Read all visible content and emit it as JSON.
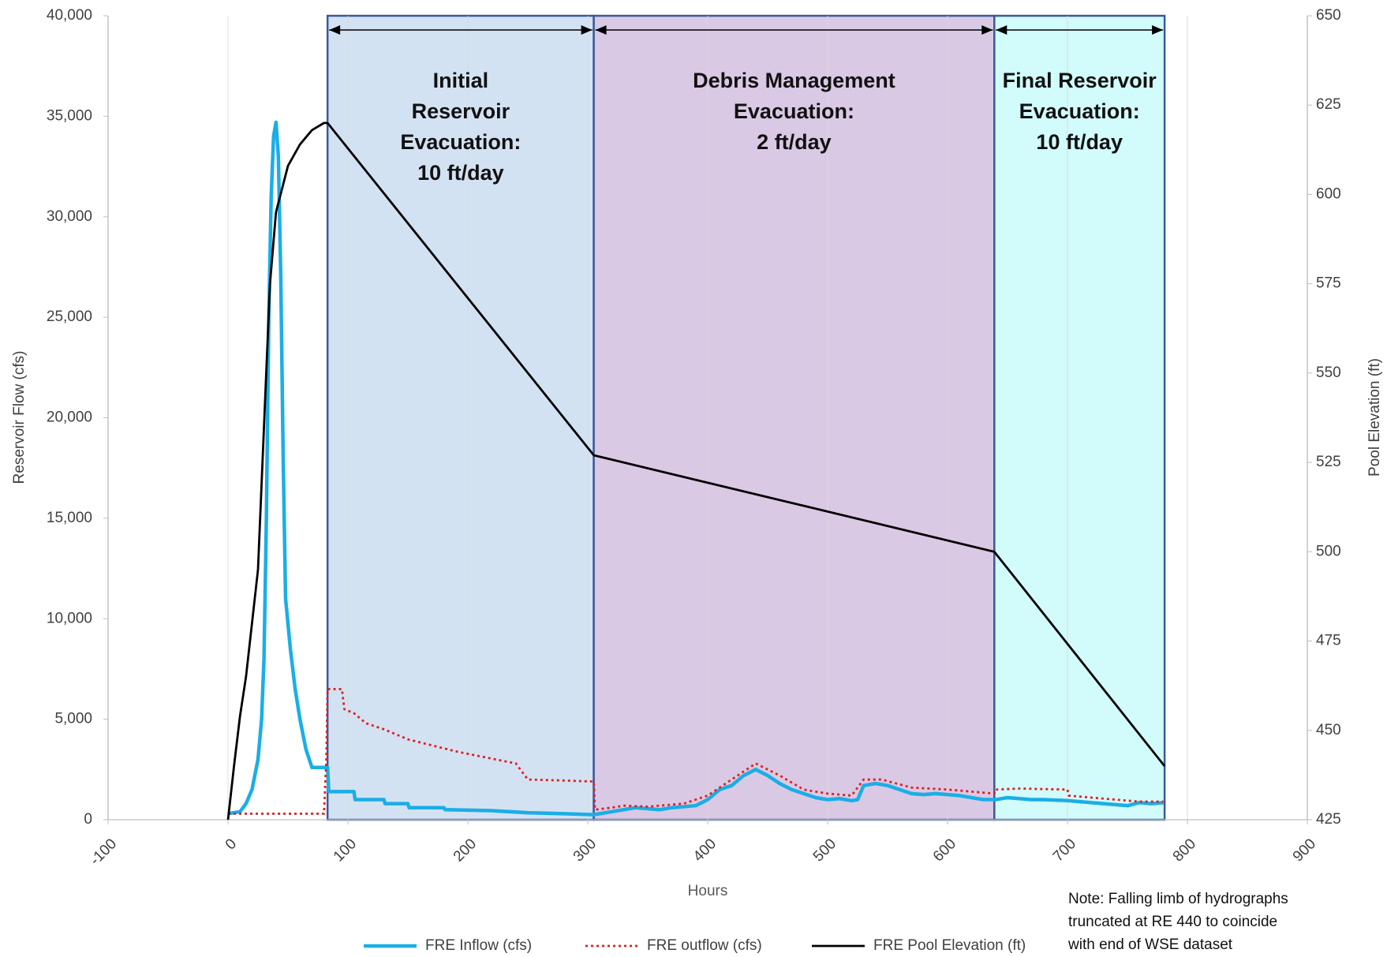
{
  "chart_data": {
    "type": "line",
    "xlabel": "Hours",
    "ylabel": "Reservoir Flow (cfs)",
    "y2label": "Pool Elevation (ft)",
    "xlim": [
      -100,
      900
    ],
    "xticks": [
      -100,
      0,
      100,
      200,
      300,
      400,
      500,
      600,
      700,
      800,
      900
    ],
    "ylim": [
      0,
      40000
    ],
    "yticks": [
      0,
      {
        "value": 5000,
        "label": "5,000"
      },
      {
        "value": 10000,
        "label": "10,000"
      },
      {
        "value": 15000,
        "label": "15,000"
      },
      {
        "value": 20000,
        "label": "20,000"
      },
      {
        "value": 25000,
        "label": "25,000"
      },
      {
        "value": 30000,
        "label": "30,000"
      },
      {
        "value": 35000,
        "label": "35,000"
      },
      {
        "value": 40000,
        "label": "40,000"
      }
    ],
    "y2lim": [
      425,
      650
    ],
    "y2ticks": [
      425,
      450,
      475,
      500,
      525,
      550,
      575,
      600,
      625,
      650
    ],
    "xgrid": true,
    "legend": "bottom",
    "regions": [
      {
        "x": [
          83,
          305
        ],
        "color": "#d3e2f3",
        "label_lines": [
          "Initial",
          "Reservoir",
          "Evacuation:",
          "10 ft/day"
        ]
      },
      {
        "x": [
          305,
          639
        ],
        "color": "#dac9e5",
        "label_lines": [
          "Debris Management",
          "Evacuation:",
          "2 ft/day"
        ]
      },
      {
        "x": [
          639,
          781
        ],
        "color": "#d2fbfb",
        "label_lines": [
          "Final Reservoir",
          "Evacuation:",
          "10 ft/day"
        ]
      }
    ],
    "note_lines": [
      "Note: Falling limb of hydrographs",
      "truncated at RE 440 to coincide",
      "with end of WSE dataset"
    ],
    "series": [
      {
        "name": "FRE Inflow (cfs)",
        "color": "#1aaee6",
        "line_style": "thick",
        "x": [
          0,
          10,
          15,
          20,
          25,
          28,
          30,
          32,
          34,
          36,
          38,
          40,
          42,
          44,
          46,
          48,
          52,
          56,
          60,
          65,
          70,
          83,
          84,
          105,
          106,
          130,
          131,
          150,
          151,
          180,
          181,
          220,
          250,
          280,
          305,
          310,
          320,
          330,
          340,
          350,
          360,
          370,
          380,
          390,
          400,
          410,
          420,
          430,
          440,
          450,
          460,
          470,
          480,
          490,
          500,
          510,
          520,
          525,
          530,
          540,
          550,
          560,
          570,
          580,
          590,
          600,
          610,
          620,
          630,
          640,
          650,
          660,
          670,
          680,
          700,
          720,
          740,
          750,
          760,
          770,
          780
        ],
        "values": [
          300,
          400,
          800,
          1500,
          3000,
          5000,
          8000,
          15000,
          25000,
          31000,
          34000,
          34700,
          33000,
          27000,
          18000,
          11000,
          8500,
          6500,
          5000,
          3500,
          2600,
          2600,
          1400,
          1400,
          1000,
          1000,
          800,
          800,
          600,
          600,
          500,
          450,
          350,
          300,
          250,
          300,
          400,
          500,
          600,
          550,
          500,
          600,
          650,
          700,
          1000,
          1500,
          1700,
          2200,
          2500,
          2200,
          1800,
          1500,
          1300,
          1100,
          1000,
          1050,
          950,
          1000,
          1700,
          1800,
          1700,
          1500,
          1300,
          1250,
          1300,
          1250,
          1200,
          1100,
          1000,
          1000,
          1100,
          1050,
          1000,
          1000,
          950,
          850,
          750,
          700,
          850,
          800,
          850
        ]
      },
      {
        "name": "FRE outflow (cfs)",
        "color": "#e02020",
        "line_style": "dotted",
        "x": [
          0,
          80,
          82,
          83,
          95,
          97,
          105,
          115,
          130,
          150,
          170,
          190,
          215,
          240,
          250,
          280,
          305,
          306,
          320,
          330,
          350,
          380,
          400,
          420,
          440,
          460,
          480,
          500,
          520,
          530,
          545,
          570,
          600,
          620,
          639,
          640,
          660,
          700,
          701,
          720,
          760,
          780
        ],
        "values": [
          300,
          300,
          3000,
          6500,
          6500,
          5500,
          5300,
          4800,
          4500,
          4000,
          3700,
          3400,
          3100,
          2800,
          2000,
          1950,
          1900,
          500,
          600,
          700,
          650,
          800,
          1200,
          2000,
          2800,
          2200,
          1500,
          1300,
          1200,
          2000,
          2000,
          1600,
          1500,
          1400,
          1300,
          1500,
          1550,
          1500,
          1200,
          1100,
          900,
          900
        ]
      },
      {
        "name": "FRE Pool Elevation (ft)",
        "color": "#000000",
        "line_style": "solid",
        "axis": "y2",
        "x": [
          0,
          5,
          10,
          15,
          20,
          25,
          30,
          35,
          40,
          50,
          60,
          70,
          80,
          83,
          305,
          639,
          781
        ],
        "values": [
          425,
          440,
          454,
          465,
          480,
          495,
          535,
          575,
          595,
          608,
          614,
          618,
          620,
          620,
          527,
          500,
          440
        ]
      }
    ]
  }
}
